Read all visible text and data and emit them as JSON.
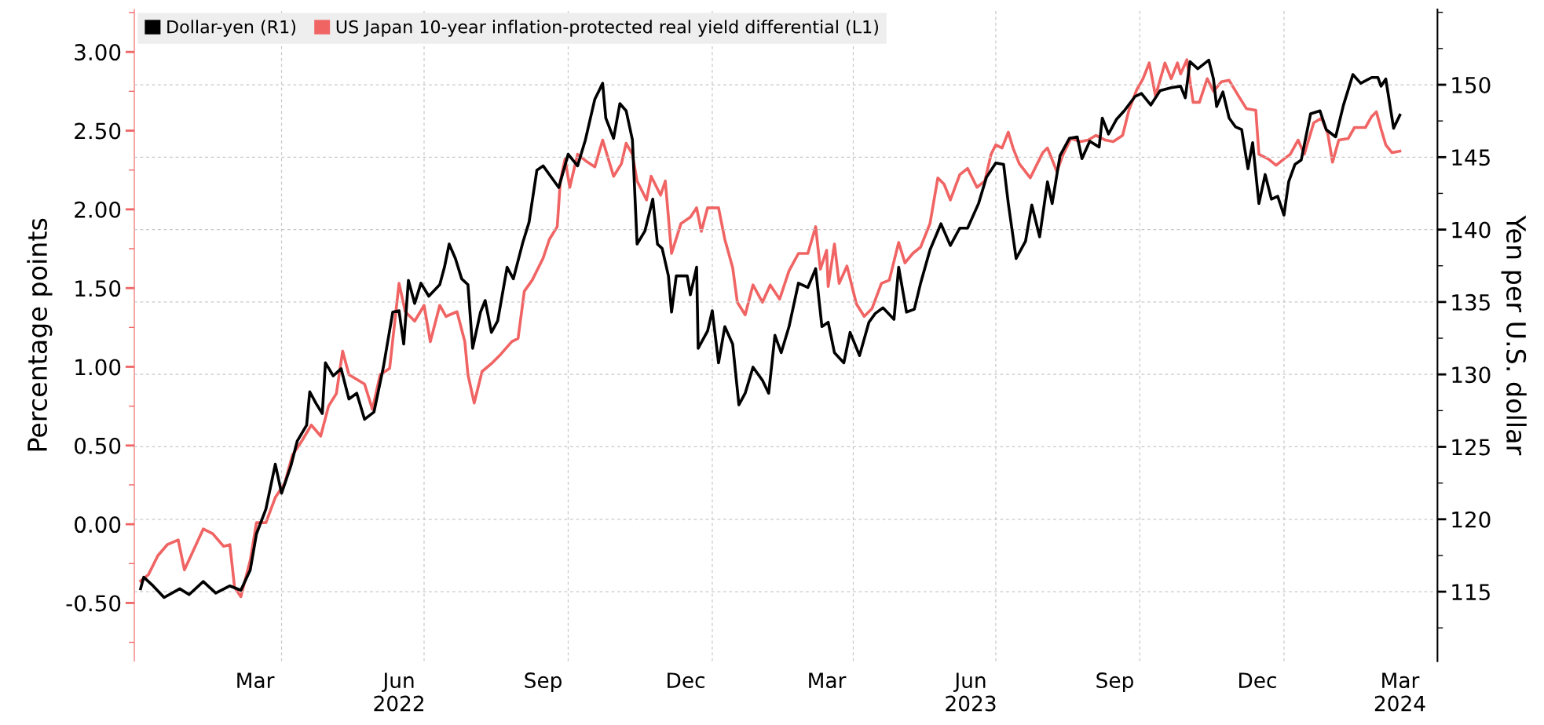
{
  "chart_data": {
    "type": "line",
    "xlabel": null,
    "ylabel": "Percentage points",
    "y2label": "Yen per U.S. dollar",
    "xlim": [
      "2021-12-28",
      "2024-04-08"
    ],
    "xticks": [
      {
        "value": "2022-03-15",
        "label": "Mar"
      },
      {
        "value": "2022-04-01",
        "label": null
      },
      {
        "value": "2022-06-15",
        "label": "Jun\n2022"
      },
      {
        "value": "2022-07-01",
        "label": null
      },
      {
        "value": "2022-09-15",
        "label": "Sep"
      },
      {
        "value": "2022-10-01",
        "label": null
      },
      {
        "value": "2022-12-15",
        "label": "Dec"
      },
      {
        "value": "2023-01-01",
        "label": null
      },
      {
        "value": "2023-03-15",
        "label": "Mar"
      },
      {
        "value": "2023-04-01",
        "label": null
      },
      {
        "value": "2023-06-15",
        "label": "Jun\n2023"
      },
      {
        "value": "2023-07-01",
        "label": null
      },
      {
        "value": "2023-09-15",
        "label": "Sep"
      },
      {
        "value": "2023-10-01",
        "label": null
      },
      {
        "value": "2023-12-15",
        "label": "Dec"
      },
      {
        "value": "2024-01-01",
        "label": null
      },
      {
        "value": "2024-03-15",
        "label": "Mar\n2024"
      }
    ],
    "ylim": [
      -0.87,
      3.27
    ],
    "yticks": [
      {
        "value": -0.5,
        "label": "-0.50"
      },
      {
        "value": 0,
        "label": "0.00"
      },
      {
        "value": 0.5,
        "label": "0.50"
      },
      {
        "value": 1,
        "label": "1.00"
      },
      {
        "value": 1.5,
        "label": "1.50"
      },
      {
        "value": 2,
        "label": "2.00"
      },
      {
        "value": 2.5,
        "label": "2.50"
      },
      {
        "value": 3,
        "label": "3.00"
      }
    ],
    "y2lim": [
      110.2,
      155.2
    ],
    "y2ticks": [
      115,
      120,
      125,
      130,
      135,
      140,
      145,
      150
    ],
    "grid": true,
    "legend": "top left",
    "series": [
      {
        "name": "Dollar-yen (R1)",
        "color": "#000000",
        "axis": "y2",
        "x": [
          "2022-01-01",
          "2022-01-03",
          "2022-01-09",
          "2022-01-16",
          "2022-01-26",
          "2022-02-01",
          "2022-02-10",
          "2022-02-18",
          "2022-02-27",
          "2022-03-06",
          "2022-03-12",
          "2022-03-16",
          "2022-03-22",
          "2022-03-28",
          "2022-04-01",
          "2022-04-07",
          "2022-04-11",
          "2022-04-17",
          "2022-04-19",
          "2022-04-23",
          "2022-04-27",
          "2022-04-29",
          "2022-05-04",
          "2022-05-09",
          "2022-05-14",
          "2022-05-19",
          "2022-05-24",
          "2022-05-30",
          "2022-06-05",
          "2022-06-11",
          "2022-06-15",
          "2022-06-18",
          "2022-06-21",
          "2022-06-25",
          "2022-06-29",
          "2022-07-04",
          "2022-07-11",
          "2022-07-14",
          "2022-07-17",
          "2022-07-21",
          "2022-07-25",
          "2022-07-29",
          "2022-08-01",
          "2022-08-06",
          "2022-08-09",
          "2022-08-13",
          "2022-08-17",
          "2022-08-23",
          "2022-08-27",
          "2022-09-02",
          "2022-09-06",
          "2022-09-11",
          "2022-09-15",
          "2022-09-21",
          "2022-09-25",
          "2022-10-01",
          "2022-10-07",
          "2022-10-12",
          "2022-10-18",
          "2022-10-23",
          "2022-10-25",
          "2022-10-30",
          "2022-11-03",
          "2022-11-07",
          "2022-11-11",
          "2022-11-14",
          "2022-11-19",
          "2022-11-24",
          "2022-11-27",
          "2022-11-30",
          "2022-12-04",
          "2022-12-06",
          "2022-12-09",
          "2022-12-16",
          "2022-12-18",
          "2022-12-22",
          "2022-12-23",
          "2022-12-29",
          "2023-01-01",
          "2023-01-05",
          "2023-01-09",
          "2023-01-14",
          "2023-01-18",
          "2023-01-22",
          "2023-01-27",
          "2023-02-02",
          "2023-02-06",
          "2023-02-10",
          "2023-02-14",
          "2023-02-19",
          "2023-02-25",
          "2023-03-03",
          "2023-03-08",
          "2023-03-12",
          "2023-03-16",
          "2023-03-20",
          "2023-03-26",
          "2023-03-30",
          "2023-04-05",
          "2023-04-11",
          "2023-04-15",
          "2023-04-20",
          "2023-04-27",
          "2023-04-30",
          "2023-05-05",
          "2023-05-10",
          "2023-05-14",
          "2023-05-20",
          "2023-05-27",
          "2023-06-02",
          "2023-06-08",
          "2023-06-13",
          "2023-06-20",
          "2023-06-25",
          "2023-07-01",
          "2023-07-06",
          "2023-07-09",
          "2023-07-14",
          "2023-07-20",
          "2023-07-24",
          "2023-07-29",
          "2023-08-03",
          "2023-08-06",
          "2023-08-11",
          "2023-08-17",
          "2023-08-22",
          "2023-08-25",
          "2023-08-30",
          "2023-09-05",
          "2023-09-07",
          "2023-09-11",
          "2023-09-16",
          "2023-09-21",
          "2023-09-28",
          "2023-10-02",
          "2023-10-08",
          "2023-10-14",
          "2023-10-21",
          "2023-10-27",
          "2023-10-30",
          "2023-11-02",
          "2023-11-07",
          "2023-11-14",
          "2023-11-17",
          "2023-11-19",
          "2023-11-23",
          "2023-11-27",
          "2023-12-01",
          "2023-12-05",
          "2023-12-09",
          "2023-12-12",
          "2023-12-16",
          "2023-12-20",
          "2023-12-24",
          "2023-12-28",
          "2024-01-01",
          "2024-01-04",
          "2024-01-08",
          "2024-01-12",
          "2024-01-18",
          "2024-01-24",
          "2024-01-28",
          "2024-02-03",
          "2024-02-08",
          "2024-02-14",
          "2024-02-19",
          "2024-02-26",
          "2024-03-01",
          "2024-03-03",
          "2024-03-06",
          "2024-03-11",
          "2024-03-15"
        ],
        "values": [
          115.2,
          116.0,
          115.4,
          114.6,
          115.2,
          114.8,
          115.7,
          114.9,
          115.4,
          115.1,
          116.5,
          119.0,
          120.7,
          123.8,
          121.8,
          123.7,
          125.4,
          126.5,
          128.8,
          128.0,
          127.3,
          130.8,
          129.9,
          130.4,
          128.3,
          128.7,
          126.9,
          127.4,
          130.5,
          134.3,
          134.4,
          132.1,
          136.5,
          134.9,
          136.3,
          135.4,
          136.2,
          137.4,
          139.0,
          138.0,
          136.6,
          136.2,
          131.8,
          134.3,
          135.1,
          132.9,
          133.7,
          137.4,
          136.6,
          139.1,
          140.5,
          144.1,
          144.4,
          143.5,
          142.9,
          145.2,
          144.4,
          146.2,
          149.0,
          150.1,
          147.7,
          146.3,
          148.7,
          148.2,
          146.2,
          139.0,
          139.9,
          142.1,
          139.0,
          138.7,
          136.8,
          134.3,
          136.8,
          136.8,
          135.5,
          137.4,
          131.8,
          133.0,
          134.4,
          130.8,
          133.3,
          132.1,
          127.9,
          128.7,
          130.5,
          129.6,
          128.7,
          132.7,
          131.5,
          133.3,
          136.3,
          136.0,
          137.3,
          133.3,
          133.6,
          131.5,
          130.8,
          132.9,
          131.3,
          133.6,
          134.2,
          134.6,
          133.8,
          137.4,
          134.3,
          134.5,
          136.3,
          138.6,
          140.4,
          138.9,
          140.1,
          140.1,
          141.8,
          143.6,
          144.6,
          144.5,
          141.8,
          138.0,
          139.2,
          141.7,
          139.5,
          143.3,
          141.8,
          145.1,
          146.3,
          146.4,
          144.9,
          146.1,
          145.7,
          147.7,
          146.6,
          147.6,
          148.2,
          149.2,
          149.4,
          148.6,
          149.6,
          149.8,
          149.9,
          149.1,
          151.6,
          151.1,
          151.7,
          150.4,
          148.5,
          149.5,
          147.7,
          147.1,
          146.9,
          144.2,
          146.0,
          141.8,
          143.8,
          142.1,
          142.3,
          141.0,
          143.3,
          144.5,
          144.8,
          148.0,
          148.2,
          146.9,
          146.4,
          148.6,
          150.7,
          150.1,
          150.5,
          150.5,
          149.9,
          150.4,
          147.0,
          147.9
        ]
      },
      {
        "name": "US Japan 10-year inflation-protected real yield differential (L1)",
        "color": "#f06464",
        "x": [
          "2022-01-01",
          "2022-01-06",
          "2022-01-12",
          "2022-01-18",
          "2022-01-25",
          "2022-01-29",
          "2022-02-04",
          "2022-02-10",
          "2022-02-16",
          "2022-02-23",
          "2022-02-27",
          "2022-03-02",
          "2022-03-06",
          "2022-03-12",
          "2022-03-16",
          "2022-03-22",
          "2022-03-28",
          "2022-04-03",
          "2022-04-08",
          "2022-04-14",
          "2022-04-20",
          "2022-04-26",
          "2022-05-01",
          "2022-05-06",
          "2022-05-10",
          "2022-05-14",
          "2022-05-19",
          "2022-05-24",
          "2022-05-29",
          "2022-06-03",
          "2022-06-09",
          "2022-06-15",
          "2022-06-19",
          "2022-06-25",
          "2022-07-01",
          "2022-07-05",
          "2022-07-11",
          "2022-07-15",
          "2022-07-22",
          "2022-07-27",
          "2022-07-29",
          "2022-08-02",
          "2022-08-07",
          "2022-08-13",
          "2022-08-19",
          "2022-08-26",
          "2022-08-30",
          "2022-09-03",
          "2022-09-08",
          "2022-09-15",
          "2022-09-19",
          "2022-09-24",
          "2022-09-26",
          "2022-09-29",
          "2022-10-02",
          "2022-10-07",
          "2022-10-12",
          "2022-10-18",
          "2022-10-23",
          "2022-10-30",
          "2022-11-04",
          "2022-11-07",
          "2022-11-11",
          "2022-11-14",
          "2022-11-20",
          "2022-11-23",
          "2022-11-29",
          "2022-12-02",
          "2022-12-06",
          "2022-12-12",
          "2022-12-18",
          "2022-12-22",
          "2022-12-25",
          "2022-12-29",
          "2023-01-05",
          "2023-01-09",
          "2023-01-14",
          "2023-01-17",
          "2023-01-22",
          "2023-01-27",
          "2023-02-02",
          "2023-02-07",
          "2023-02-13",
          "2023-02-19",
          "2023-02-25",
          "2023-03-03",
          "2023-03-08",
          "2023-03-11",
          "2023-03-15",
          "2023-03-16",
          "2023-03-20",
          "2023-03-23",
          "2023-03-28",
          "2023-04-03",
          "2023-04-08",
          "2023-04-13",
          "2023-04-19",
          "2023-04-24",
          "2023-04-30",
          "2023-05-04",
          "2023-05-09",
          "2023-05-14",
          "2023-05-20",
          "2023-05-25",
          "2023-05-29",
          "2023-06-02",
          "2023-06-08",
          "2023-06-13",
          "2023-06-19",
          "2023-06-24",
          "2023-06-28",
          "2023-07-01",
          "2023-07-05",
          "2023-07-09",
          "2023-07-12",
          "2023-07-16",
          "2023-07-23",
          "2023-07-28",
          "2023-07-31",
          "2023-08-03",
          "2023-08-09",
          "2023-08-13",
          "2023-08-18",
          "2023-08-24",
          "2023-08-29",
          "2023-09-03",
          "2023-09-09",
          "2023-09-14",
          "2023-09-20",
          "2023-09-24",
          "2023-09-29",
          "2023-10-03",
          "2023-10-07",
          "2023-10-11",
          "2023-10-17",
          "2023-10-21",
          "2023-10-25",
          "2023-10-27",
          "2023-10-31",
          "2023-11-04",
          "2023-11-08",
          "2023-11-13",
          "2023-11-17",
          "2023-11-22",
          "2023-11-27",
          "2023-12-03",
          "2023-12-08",
          "2023-12-14",
          "2023-12-16",
          "2023-12-22",
          "2023-12-27",
          "2024-01-01",
          "2024-01-05",
          "2024-01-10",
          "2024-01-14",
          "2024-01-20",
          "2024-01-25",
          "2024-01-29",
          "2024-02-01",
          "2024-02-05",
          "2024-02-11",
          "2024-02-15",
          "2024-02-22",
          "2024-02-26",
          "2024-02-29",
          "2024-03-03",
          "2024-03-06",
          "2024-03-10",
          "2024-03-15"
        ],
        "values": [
          -0.36,
          -0.32,
          -0.2,
          -0.13,
          -0.1,
          -0.29,
          -0.16,
          -0.03,
          -0.06,
          -0.14,
          -0.13,
          -0.4,
          -0.46,
          -0.23,
          0.01,
          0.01,
          0.17,
          0.26,
          0.44,
          0.53,
          0.63,
          0.56,
          0.75,
          0.83,
          1.1,
          0.95,
          0.92,
          0.89,
          0.73,
          0.95,
          0.99,
          1.53,
          1.35,
          1.29,
          1.39,
          1.16,
          1.39,
          1.32,
          1.35,
          1.16,
          0.95,
          0.77,
          0.97,
          1.02,
          1.08,
          1.16,
          1.18,
          1.48,
          1.55,
          1.69,
          1.81,
          1.89,
          2.18,
          2.32,
          2.14,
          2.35,
          2.31,
          2.27,
          2.44,
          2.21,
          2.29,
          2.42,
          2.35,
          2.18,
          2.06,
          2.21,
          2.09,
          2.18,
          1.72,
          1.91,
          1.95,
          2.01,
          1.86,
          2.01,
          2.01,
          1.81,
          1.63,
          1.41,
          1.33,
          1.52,
          1.41,
          1.52,
          1.43,
          1.61,
          1.72,
          1.72,
          1.89,
          1.62,
          1.74,
          1.51,
          1.78,
          1.53,
          1.64,
          1.4,
          1.32,
          1.37,
          1.53,
          1.55,
          1.79,
          1.66,
          1.72,
          1.76,
          1.91,
          2.2,
          2.16,
          2.06,
          2.22,
          2.26,
          2.14,
          2.18,
          2.35,
          2.41,
          2.39,
          2.49,
          2.39,
          2.29,
          2.2,
          2.3,
          2.36,
          2.39,
          2.24,
          2.35,
          2.45,
          2.43,
          2.44,
          2.47,
          2.44,
          2.43,
          2.47,
          2.63,
          2.76,
          2.83,
          2.93,
          2.72,
          2.93,
          2.83,
          2.93,
          2.86,
          2.95,
          2.68,
          2.68,
          2.83,
          2.75,
          2.81,
          2.82,
          2.72,
          2.64,
          2.63,
          2.35,
          2.32,
          2.28,
          2.32,
          2.35,
          2.44,
          2.35,
          2.55,
          2.58,
          2.48,
          2.3,
          2.44,
          2.45,
          2.52,
          2.52,
          2.59,
          2.62,
          2.51,
          2.41,
          2.36,
          2.37
        ]
      }
    ]
  }
}
